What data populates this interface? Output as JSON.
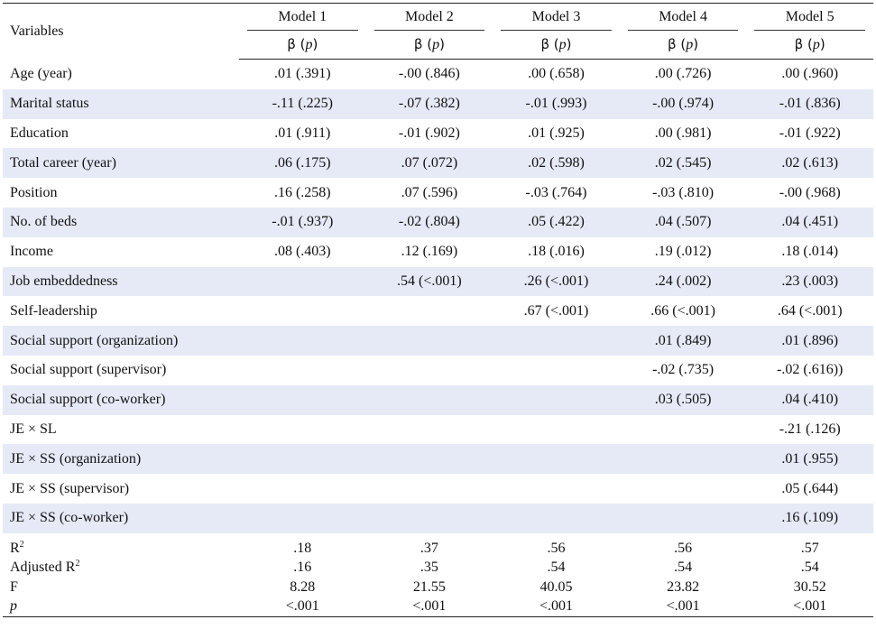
{
  "header": {
    "variables_label": "Variables",
    "models": [
      "Model 1",
      "Model 2",
      "Model 3",
      "Model 4",
      "Model 5"
    ],
    "beta_label": "β",
    "p_label": "p"
  },
  "rows": [
    {
      "label": "Age (year)",
      "values": [
        ".01 (.391)",
        "-.00 (.846)",
        ".00 (.658)",
        ".00 (.726)",
        ".00 (.960)"
      ]
    },
    {
      "label": "Marital status",
      "values": [
        "-.11 (.225)",
        "-.07 (.382)",
        "-.01 (.993)",
        "-.00 (.974)",
        "-.01 (.836)"
      ]
    },
    {
      "label": "Education",
      "values": [
        ".01 (.911)",
        "-.01 (.902)",
        ".01 (.925)",
        ".00 (.981)",
        "-.01 (.922)"
      ]
    },
    {
      "label": "Total career (year)",
      "values": [
        ".06 (.175)",
        ".07 (.072)",
        ".02 (.598)",
        ".02 (.545)",
        ".02 (.613)"
      ]
    },
    {
      "label": "Position",
      "values": [
        ".16 (.258)",
        ".07 (.596)",
        "-.03 (.764)",
        "-.03 (.810)",
        "-.00 (.968)"
      ]
    },
    {
      "label": "No. of beds",
      "values": [
        "-.01 (.937)",
        "-.02 (.804)",
        ".05 (.422)",
        ".04 (.507)",
        ".04 (.451)"
      ]
    },
    {
      "label": "Income",
      "values": [
        ".08 (.403)",
        ".12 (.169)",
        ".18 (.016)",
        ".19 (.012)",
        ".18 (.014)"
      ]
    },
    {
      "label": "Job embeddedness",
      "values": [
        "",
        ".54 (<.001)",
        ".26 (<.001)",
        ".24 (.002)",
        ".23 (.003)"
      ]
    },
    {
      "label": "Self-leadership",
      "values": [
        "",
        "",
        ".67 (<.001)",
        ".66 (<.001)",
        ".64 (<.001)"
      ]
    },
    {
      "label": "Social support (organization)",
      "values": [
        "",
        "",
        "",
        ".01 (.849)",
        ".01 (.896)"
      ]
    },
    {
      "label": "Social support (supervisor)",
      "values": [
        "",
        "",
        "",
        "-.02 (.735)",
        "-.02 (.616))"
      ]
    },
    {
      "label": "Social support (co-worker)",
      "values": [
        "",
        "",
        "",
        ".03 (.505)",
        ".04 (.410)"
      ]
    },
    {
      "label": "JE × SL",
      "values": [
        "",
        "",
        "",
        "",
        "-.21 (.126)"
      ]
    },
    {
      "label": "JE × SS (organization)",
      "values": [
        "",
        "",
        "",
        "",
        ".01 (.955)"
      ]
    },
    {
      "label": "JE × SS (supervisor)",
      "values": [
        "",
        "",
        "",
        "",
        ".05 (.644)"
      ]
    },
    {
      "label": "JE × SS (co-worker)",
      "values": [
        "",
        "",
        "",
        "",
        ".16 (.109)"
      ]
    }
  ],
  "stats": [
    {
      "label": "R",
      "sup": "2",
      "values": [
        ".18",
        ".37",
        ".56",
        ".56",
        ".57"
      ]
    },
    {
      "label": "Adjusted R",
      "sup": "2",
      "values": [
        ".16",
        ".35",
        ".54",
        ".54",
        ".54"
      ]
    },
    {
      "label": "F",
      "sup": "",
      "values": [
        "8.28",
        "21.55",
        "40.05",
        "23.82",
        "30.52"
      ]
    },
    {
      "label": "p",
      "sup": "",
      "italic": true,
      "values": [
        "<.001",
        "<.001",
        "<.001",
        "<.001",
        "<.001"
      ]
    }
  ],
  "colors": {
    "row_shade": "#e6eaf7",
    "rule": "#222222"
  }
}
